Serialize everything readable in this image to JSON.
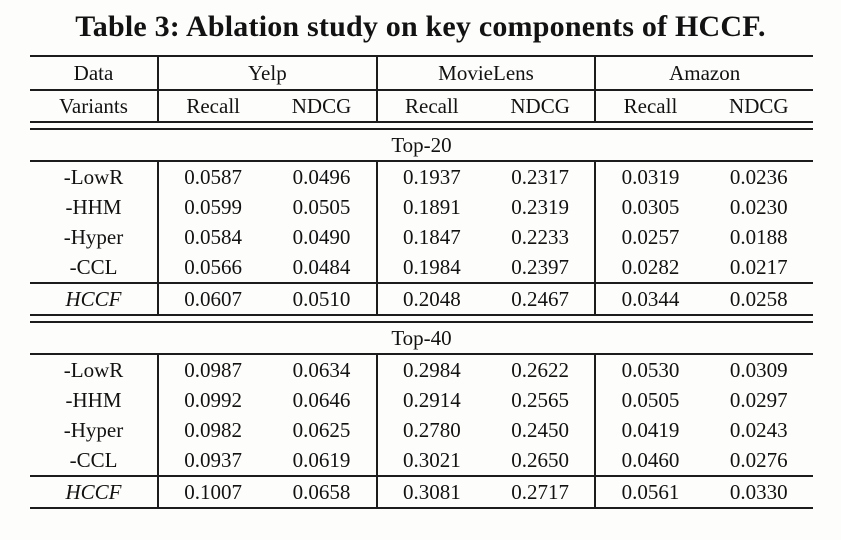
{
  "title": "Table 3: Ablation study on key components of HCCF.",
  "colors": {
    "background": "#fdfdfb",
    "text": "#121212",
    "rule": "#1c1c1c"
  },
  "table": {
    "header": {
      "col1_row1": "Data",
      "col1_row2": "Variants",
      "datasets": [
        "Yelp",
        "MovieLens",
        "Amazon"
      ],
      "metrics": [
        "Recall",
        "NDCG"
      ]
    },
    "sections": [
      {
        "label": "Top-20",
        "rows": [
          {
            "variant": "-LowR",
            "italic": false,
            "sep_above": false,
            "values": [
              "0.0587",
              "0.0496",
              "0.1937",
              "0.2317",
              "0.0319",
              "0.0236"
            ]
          },
          {
            "variant": "-HHM",
            "italic": false,
            "sep_above": false,
            "values": [
              "0.0599",
              "0.0505",
              "0.1891",
              "0.2319",
              "0.0305",
              "0.0230"
            ]
          },
          {
            "variant": "-Hyper",
            "italic": false,
            "sep_above": false,
            "values": [
              "0.0584",
              "0.0490",
              "0.1847",
              "0.2233",
              "0.0257",
              "0.0188"
            ]
          },
          {
            "variant": "-CCL",
            "italic": false,
            "sep_above": false,
            "values": [
              "0.0566",
              "0.0484",
              "0.1984",
              "0.2397",
              "0.0282",
              "0.0217"
            ]
          },
          {
            "variant": "HCCF",
            "italic": true,
            "sep_above": true,
            "values": [
              "0.0607",
              "0.0510",
              "0.2048",
              "0.2467",
              "0.0344",
              "0.0258"
            ]
          }
        ]
      },
      {
        "label": "Top-40",
        "rows": [
          {
            "variant": "-LowR",
            "italic": false,
            "sep_above": false,
            "values": [
              "0.0987",
              "0.0634",
              "0.2984",
              "0.2622",
              "0.0530",
              "0.0309"
            ]
          },
          {
            "variant": "-HHM",
            "italic": false,
            "sep_above": false,
            "values": [
              "0.0992",
              "0.0646",
              "0.2914",
              "0.2565",
              "0.0505",
              "0.0297"
            ]
          },
          {
            "variant": "-Hyper",
            "italic": false,
            "sep_above": false,
            "values": [
              "0.0982",
              "0.0625",
              "0.2780",
              "0.2450",
              "0.0419",
              "0.0243"
            ]
          },
          {
            "variant": "-CCL",
            "italic": false,
            "sep_above": false,
            "values": [
              "0.0937",
              "0.0619",
              "0.3021",
              "0.2650",
              "0.0460",
              "0.0276"
            ]
          },
          {
            "variant": "HCCF",
            "italic": true,
            "sep_above": true,
            "values": [
              "0.1007",
              "0.0658",
              "0.3081",
              "0.2717",
              "0.0561",
              "0.0330"
            ]
          }
        ]
      }
    ]
  }
}
